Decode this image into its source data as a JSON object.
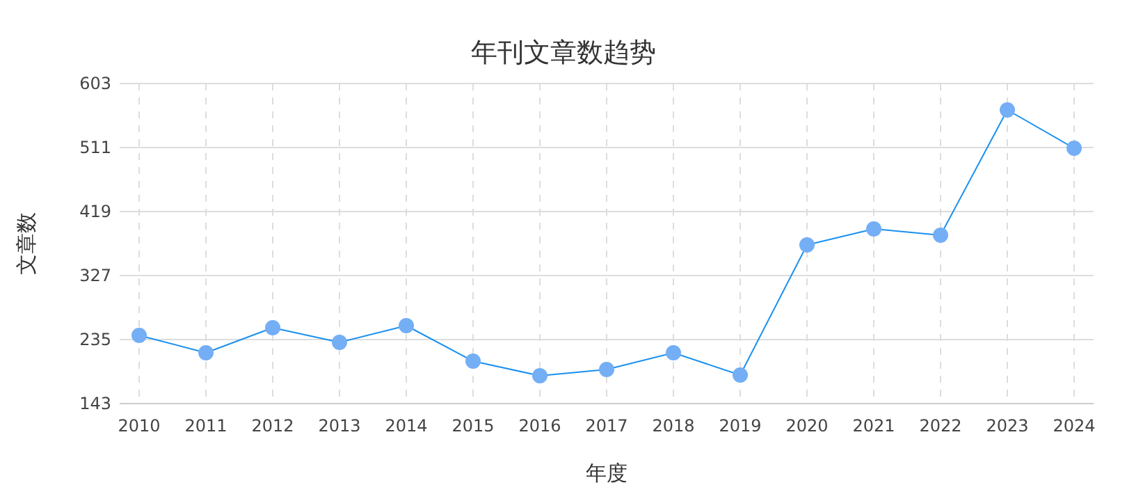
{
  "chart_data": {
    "type": "line",
    "title": "年刊文章数趋势",
    "xlabel": "年度",
    "ylabel": "文章数",
    "categories": [
      "2010",
      "2011",
      "2012",
      "2013",
      "2014",
      "2015",
      "2016",
      "2017",
      "2018",
      "2019",
      "2020",
      "2021",
      "2022",
      "2023",
      "2024"
    ],
    "series": [
      {
        "color": "#1a90f0",
        "values": [
          241,
          216,
          252,
          231,
          255,
          204,
          183,
          192,
          216,
          184,
          371,
          394,
          385,
          565,
          510
        ]
      }
    ],
    "ylim": [
      143,
      603
    ],
    "yticks": [
      143,
      235,
      327,
      419,
      511,
      603
    ],
    "grid": true,
    "marker": "circle",
    "line_style": "solid"
  }
}
